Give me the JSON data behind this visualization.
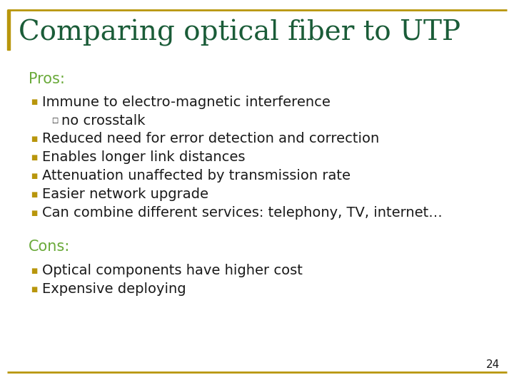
{
  "title": "Comparing optical fiber to UTP",
  "title_color": "#1a5c38",
  "title_fontsize": 28,
  "background_color": "#ffffff",
  "border_color": "#b8960c",
  "section_pros": "Pros:",
  "section_cons": "Cons:",
  "section_color": "#6aaa3a",
  "section_fontsize": 15,
  "bullet_color": "#b8960c",
  "body_fontsize": 14,
  "pros_items": [
    {
      "indent": 0,
      "text": "Immune to electro-magnetic interference"
    },
    {
      "indent": 1,
      "text": "no crosstalk"
    },
    {
      "indent": 0,
      "text": "Reduced need for error detection and correction"
    },
    {
      "indent": 0,
      "text": "Enables longer link distances"
    },
    {
      "indent": 0,
      "text": "Attenuation unaffected by transmission rate"
    },
    {
      "indent": 0,
      "text": "Easier network upgrade"
    },
    {
      "indent": 0,
      "text": "Can combine different services: telephony, TV, internet…"
    }
  ],
  "cons_items": [
    {
      "indent": 0,
      "text": "Optical components have higher cost"
    },
    {
      "indent": 0,
      "text": "Expensive deploying"
    }
  ],
  "page_number": "24",
  "text_color": "#1a1a1a"
}
